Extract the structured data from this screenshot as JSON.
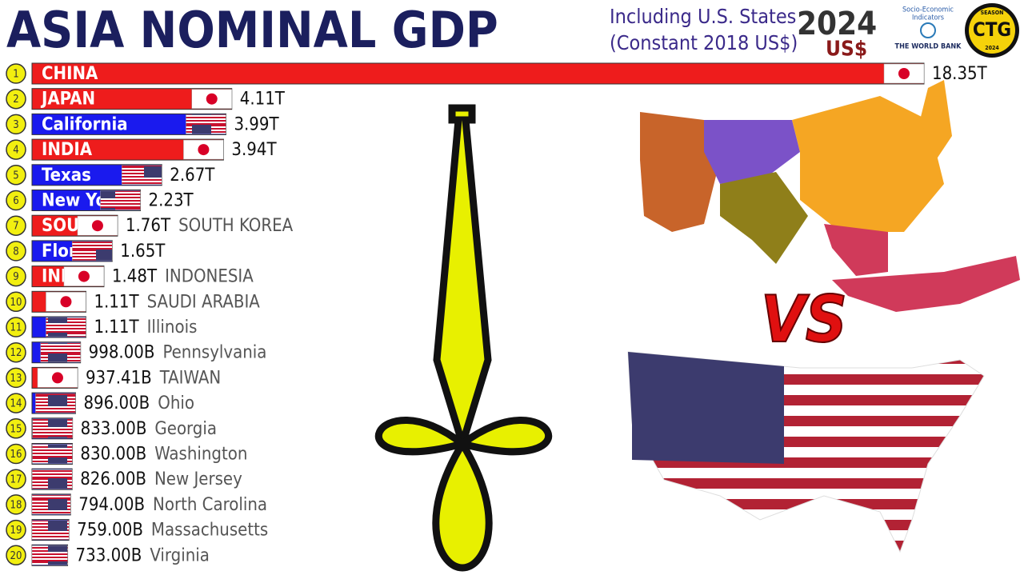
{
  "chart_data": {
    "type": "bar",
    "orientation": "horizontal",
    "title": "ASIA NOMINAL GDP",
    "subtitle": [
      "Including U.S. States",
      "(Constant 2018 US$)"
    ],
    "year": "2024",
    "currency": "US$",
    "source": [
      "Socio-Economic",
      "Indicators",
      "THE WORLD BANK"
    ],
    "badge": [
      "SEASON",
      "CTG",
      "2024"
    ],
    "vs": "VS",
    "ranks": [
      1,
      2,
      3,
      4,
      5,
      6,
      7,
      8,
      9,
      10,
      11,
      12,
      13,
      14,
      15,
      16,
      17,
      18,
      19,
      20
    ],
    "categories": [
      "CHINA",
      "JAPAN",
      "California",
      "INDIA",
      "Texas",
      "New York",
      "SOUTH KOREA",
      "Florida",
      "INDONESIA",
      "SAUDI ARABIA",
      "Illinois",
      "Pennsylvania",
      "TAIWAN",
      "Ohio",
      "Georgia",
      "Washington",
      "New Jersey",
      "North Carolina",
      "Massachusetts",
      "Virginia"
    ],
    "values": [
      18350,
      4110,
      3990,
      3940,
      2670,
      2230,
      1760,
      1650,
      1480,
      1110,
      1110,
      998,
      937.41,
      896,
      833,
      830,
      826,
      794,
      759,
      733
    ],
    "value_labels": [
      "18.35T",
      "4.11T",
      "3.99T",
      "3.94T",
      "2.67T",
      "2.23T",
      "1.76T",
      "1.65T",
      "1.48T",
      "1.11T",
      "1.11T",
      "998.00B",
      "937.41B",
      "896.00B",
      "833.00B",
      "830.00B",
      "826.00B",
      "794.00B",
      "759.00B",
      "733.00B"
    ],
    "colors": [
      "#ee1c1c",
      "#ee1c1c",
      "#1a1aee",
      "#ee1c1c",
      "#1a1aee",
      "#1a1aee",
      "#ee1c1c",
      "#1a1aee",
      "#ee1c1c",
      "#ee1c1c",
      "#1a1aee",
      "#1a1aee",
      "#ee1c1c",
      "#1a1aee",
      "#1a1aee",
      "#1a1aee",
      "#1a1aee",
      "#1a1aee",
      "#1a1aee",
      "#1a1aee"
    ]
  }
}
